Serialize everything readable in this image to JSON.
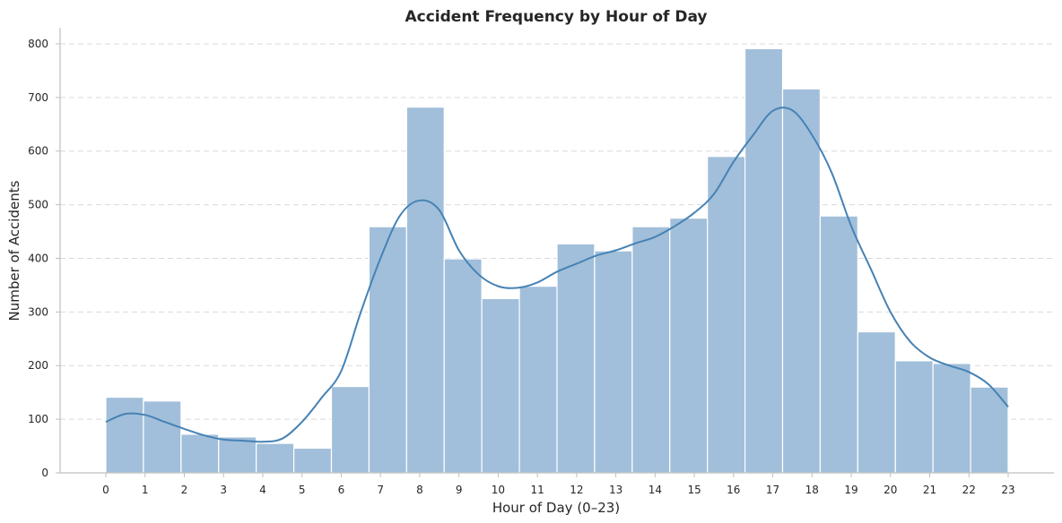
{
  "chart_data": {
    "type": "bar",
    "title": "Accident Frequency by Hour of Day",
    "xlabel": "Hour of Day (0–23)",
    "ylabel": "Number of Accidents",
    "categories": [
      "0",
      "1",
      "2",
      "3",
      "4",
      "5",
      "6",
      "7",
      "8",
      "9",
      "10",
      "11",
      "12",
      "13",
      "14",
      "15",
      "16",
      "17",
      "18",
      "19",
      "20",
      "21",
      "22",
      "23"
    ],
    "values": [
      141,
      134,
      72,
      67,
      55,
      46,
      161,
      459,
      682,
      399,
      325,
      348,
      427,
      414,
      459,
      475,
      590,
      791,
      716,
      479,
      263,
      209,
      204,
      160
    ],
    "kde": {
      "x": [
        0,
        0.5,
        1,
        1.5,
        2,
        2.5,
        3,
        3.5,
        4,
        4.5,
        5,
        5.5,
        6,
        6.5,
        7,
        7.5,
        8,
        8.5,
        9,
        9.5,
        10,
        10.5,
        11,
        11.5,
        12,
        12.5,
        13,
        13.5,
        14,
        14.5,
        15,
        15.5,
        16,
        16.5,
        17,
        17.5,
        18,
        18.5,
        19,
        19.5,
        20,
        20.5,
        21,
        21.5,
        22,
        22.5,
        23
      ],
      "y": [
        95,
        110,
        108,
        95,
        82,
        70,
        62,
        60,
        58,
        64,
        95,
        140,
        190,
        300,
        400,
        480,
        508,
        490,
        415,
        370,
        348,
        345,
        355,
        375,
        390,
        405,
        415,
        428,
        440,
        460,
        485,
        520,
        580,
        630,
        675,
        676,
        630,
        560,
        460,
        380,
        300,
        245,
        215,
        200,
        188,
        165,
        123
      ]
    },
    "ylim": [
      0,
      830
    ],
    "yticks": [
      0,
      100,
      200,
      300,
      400,
      500,
      600,
      700,
      800
    ],
    "grid": "y-dashed",
    "colors": {
      "bar": "#a1bfda",
      "kde": "#4682b4"
    }
  }
}
